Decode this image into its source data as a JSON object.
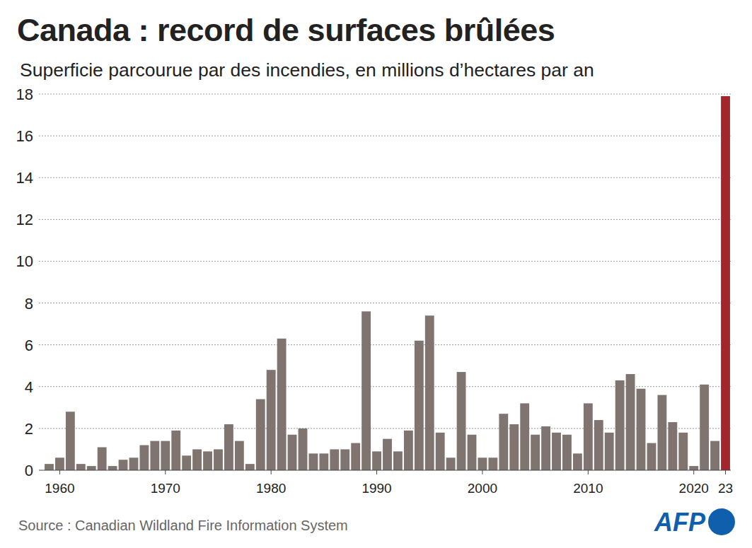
{
  "chart_data": {
    "type": "bar",
    "title": "Canada : record de surfaces brûlées",
    "subtitle": "Superficie parcourue par des incendies, en millions d’hectares par an",
    "source": "Source : Canadian Wildland Fire Information System",
    "logo": "AFP",
    "categories": [
      null,
      "1960",
      null,
      null,
      null,
      null,
      null,
      null,
      null,
      null,
      null,
      "1970",
      null,
      null,
      null,
      null,
      null,
      null,
      null,
      null,
      null,
      "1980",
      null,
      null,
      null,
      null,
      null,
      null,
      null,
      null,
      null,
      "1990",
      null,
      null,
      null,
      null,
      null,
      null,
      null,
      null,
      null,
      "2000",
      null,
      null,
      null,
      null,
      null,
      null,
      null,
      null,
      null,
      "2010",
      null,
      null,
      null,
      null,
      null,
      null,
      null,
      null,
      null,
      "2020",
      null,
      null,
      "23"
    ],
    "values": [
      0.3,
      0.6,
      2.8,
      0.3,
      0.2,
      1.1,
      0.2,
      0.5,
      0.6,
      1.2,
      1.4,
      1.4,
      1.9,
      0.7,
      1.0,
      0.9,
      1.0,
      2.2,
      1.4,
      0.3,
      3.4,
      4.8,
      6.3,
      1.7,
      2.0,
      0.8,
      0.8,
      1.0,
      1.0,
      1.3,
      7.6,
      0.9,
      1.5,
      0.9,
      1.9,
      6.2,
      7.4,
      1.8,
      0.6,
      4.7,
      1.7,
      0.6,
      0.6,
      2.7,
      2.2,
      3.2,
      1.7,
      2.1,
      1.8,
      1.7,
      0.8,
      3.2,
      2.4,
      1.8,
      4.3,
      4.6,
      3.9,
      1.3,
      3.6,
      2.3,
      1.8,
      0.2,
      4.1,
      1.4,
      17.9
    ],
    "colors": [
      "#7f746f",
      "#7f746f",
      "#7f746f",
      "#7f746f",
      "#7f746f",
      "#7f746f",
      "#7f746f",
      "#7f746f",
      "#7f746f",
      "#7f746f",
      "#7f746f",
      "#7f746f",
      "#7f746f",
      "#7f746f",
      "#7f746f",
      "#7f746f",
      "#7f746f",
      "#7f746f",
      "#7f746f",
      "#7f746f",
      "#7f746f",
      "#7f746f",
      "#7f746f",
      "#7f746f",
      "#7f746f",
      "#7f746f",
      "#7f746f",
      "#7f746f",
      "#7f746f",
      "#7f746f",
      "#7f746f",
      "#7f746f",
      "#7f746f",
      "#7f746f",
      "#7f746f",
      "#7f746f",
      "#7f746f",
      "#7f746f",
      "#7f746f",
      "#7f746f",
      "#7f746f",
      "#7f746f",
      "#7f746f",
      "#7f746f",
      "#7f746f",
      "#7f746f",
      "#7f746f",
      "#7f746f",
      "#7f746f",
      "#7f746f",
      "#7f746f",
      "#7f746f",
      "#7f746f",
      "#7f746f",
      "#7f746f",
      "#7f746f",
      "#7f746f",
      "#7f746f",
      "#7f746f",
      "#7f746f",
      "#7f746f",
      "#7f746f",
      "#7f746f",
      "#7f746f",
      "#a3262c"
    ],
    "ylim": [
      0,
      18
    ],
    "yticks": [
      0,
      2,
      4,
      6,
      8,
      10,
      12,
      14,
      16,
      18
    ],
    "grid": true
  }
}
